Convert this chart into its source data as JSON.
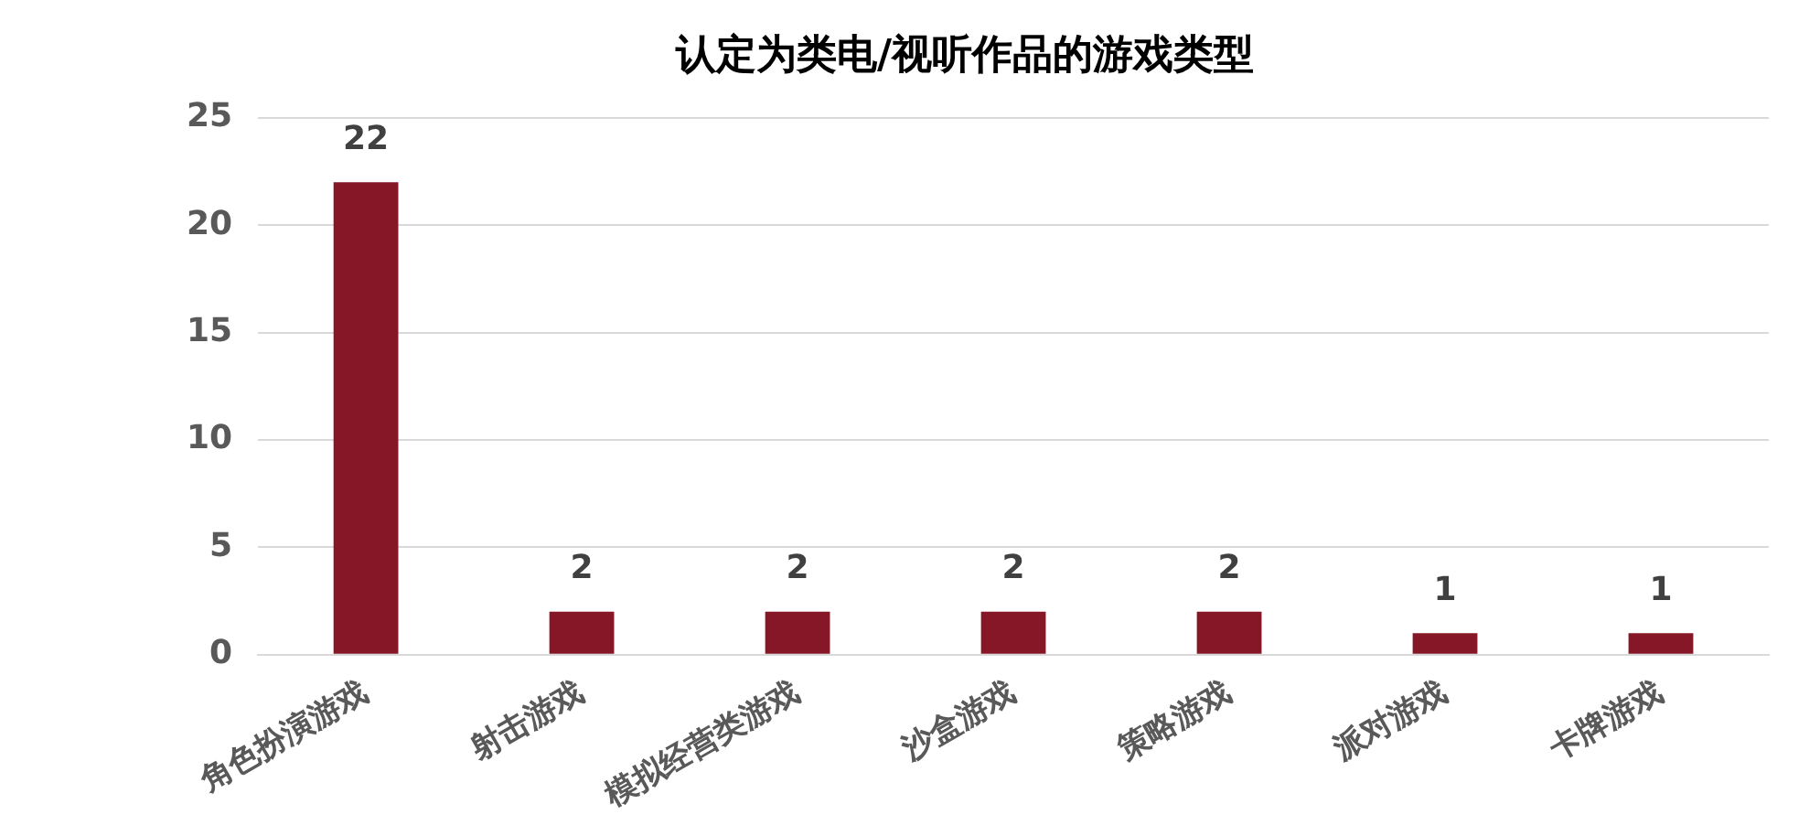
{
  "chart_data": {
    "type": "bar",
    "title": "认定为类电/视听作品的游戏类型",
    "categories": [
      "角色扮演游戏",
      "射击游戏",
      "模拟经营类游戏",
      "沙盒游戏",
      "策略游戏",
      "派对游戏",
      "卡牌游戏"
    ],
    "values": [
      22,
      2,
      2,
      2,
      2,
      1,
      1
    ],
    "color": "#861727",
    "ylim": [
      0,
      25
    ],
    "yticks": [
      0,
      5,
      10,
      15,
      20,
      25
    ],
    "grid": "y",
    "legend": false,
    "data_labels": true
  }
}
